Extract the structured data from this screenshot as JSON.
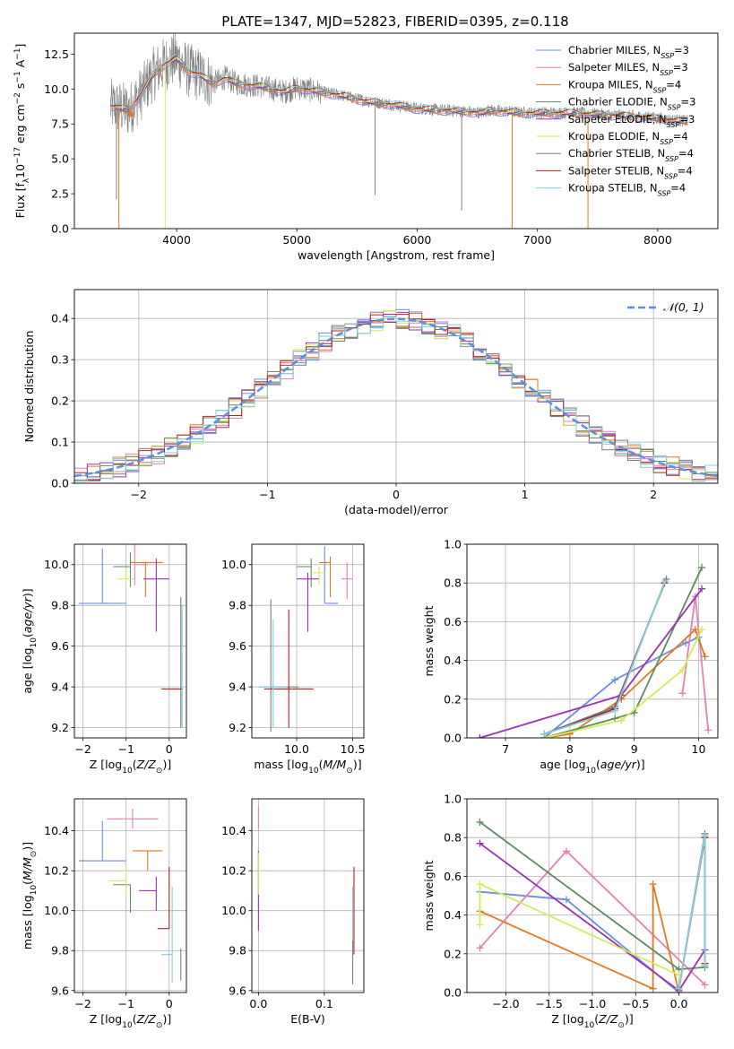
{
  "figure": {
    "title": "PLATE=1347, MJD=52823, FIBERID=0395, z=0.118"
  },
  "colors": {
    "chabrier_miles": "#6b8ee0",
    "salpeter_miles": "#e37fb4",
    "kroupa_miles": "#e07a20",
    "chabrier_elodie": "#5e8c5e",
    "salpeter_elodie": "#9a30b5",
    "kroupa_elodie": "#d4ec5a",
    "chabrier_stelib": "#7f7f7f",
    "salpeter_stelib": "#b22222",
    "kroupa_stelib": "#80d0e0"
  },
  "chart_data": [
    {
      "id": "spectrum",
      "type": "line",
      "xlabel": "wavelength [Angstrom, rest frame]",
      "ylabel": "Flux [f_λ 10^-17 erg cm^-2 s^-1 A^-1]",
      "xlim": [
        3150,
        8500
      ],
      "ylim": [
        0,
        14
      ],
      "xticks": [
        4000,
        5000,
        6000,
        7000,
        8000
      ],
      "yticks": [
        0.0,
        2.5,
        5.0,
        7.5,
        10.0,
        12.5
      ],
      "grid": false,
      "legend_position": "top-right",
      "legend": [
        {
          "label": "Chabrier MILES, N",
          "sub": "SSP",
          "suffix": "=3",
          "color_key": "chabrier_miles"
        },
        {
          "label": "Salpeter MILES, N",
          "sub": "SSP",
          "suffix": "=3",
          "color_key": "salpeter_miles"
        },
        {
          "label": "Kroupa MILES, N",
          "sub": "SSP",
          "suffix": "=4",
          "color_key": "kroupa_miles"
        },
        {
          "label": "Chabrier ELODIE, N",
          "sub": "SSP",
          "suffix": "=3",
          "color_key": "chabrier_elodie"
        },
        {
          "label": "Salpeter ELODIE, N",
          "sub": "SSP",
          "suffix": "=3",
          "color_key": "salpeter_elodie"
        },
        {
          "label": "Kroupa ELODIE, N",
          "sub": "SSP",
          "suffix": "=4",
          "color_key": "kroupa_elodie"
        },
        {
          "label": "Chabrier STELIB, N",
          "sub": "SSP",
          "suffix": "=4",
          "color_key": "chabrier_stelib"
        },
        {
          "label": "Salpeter STELIB, N",
          "sub": "SSP",
          "suffix": "=4",
          "color_key": "salpeter_stelib"
        },
        {
          "label": "Kroupa STELIB, N",
          "sub": "SSP",
          "suffix": "=4",
          "color_key": "kroupa_stelib"
        }
      ],
      "continuum": {
        "x": [
          3450,
          3600,
          3700,
          3800,
          3900,
          3950,
          4000,
          4100,
          4200,
          4300,
          4400,
          4500,
          4700,
          4900,
          5000,
          5200,
          5400,
          5600,
          5800,
          6000,
          6200,
          6400,
          6550,
          6600,
          6700,
          6900,
          7100,
          7300,
          7500,
          7700,
          7900,
          8100,
          8250
        ],
        "y": [
          8.8,
          8.5,
          9.6,
          11.0,
          11.8,
          12.0,
          12.2,
          11.3,
          11.0,
          10.4,
          10.8,
          10.4,
          10.2,
          9.8,
          10.1,
          9.8,
          9.5,
          9.1,
          8.9,
          8.6,
          8.5,
          8.4,
          8.3,
          8.5,
          8.4,
          8.3,
          8.3,
          8.3,
          8.2,
          8.1,
          8.0,
          7.8,
          7.7
        ]
      },
      "sharp_drops": [
        {
          "x": 3500,
          "y": 2.1,
          "color_key": "chabrier_stelib"
        },
        {
          "x": 3520,
          "y": 0.0,
          "color_key": "kroupa_miles"
        },
        {
          "x": 3905,
          "y": 0.0,
          "color_key": "kroupa_elodie"
        },
        {
          "x": 5650,
          "y": 2.4,
          "color_key": "chabrier_stelib"
        },
        {
          "x": 6370,
          "y": 1.3,
          "color_key": "chabrier_stelib"
        },
        {
          "x": 6790,
          "y": 0.0,
          "color_key": "kroupa_miles"
        },
        {
          "x": 7420,
          "y": 0.0,
          "color_key": "kroupa_miles"
        }
      ],
      "data_start_marker": {
        "x": 3620,
        "y": 8.2,
        "color_key": "kroupa_miles"
      }
    },
    {
      "id": "residual_histogram",
      "type": "bar",
      "xlabel": "(data-model)/error",
      "ylabel": "Normed distribution",
      "xlim": [
        -2.5,
        2.5
      ],
      "ylim": [
        0.0,
        0.47
      ],
      "xticks": [
        -2,
        -1,
        0,
        1,
        2
      ],
      "yticks": [
        0.0,
        0.1,
        0.2,
        0.3,
        0.4
      ],
      "bin_width": 0.1,
      "grid": true,
      "legend_position": "top-right",
      "reference_curve": {
        "label": "𝒩(0, 1)",
        "color": "#5b8fe0",
        "mean": 0,
        "sigma": 1,
        "dashed": true
      },
      "series_note": "nine step histograms, one per model (same colors as the spectrum legend)"
    },
    {
      "id": "age_vs_metallicity",
      "type": "scatter",
      "xlabel": "Z [log10(Z/Z⊙)]",
      "ylabel": "age [log10(age/yr)]",
      "xlim": [
        -2.2,
        0.4
      ],
      "ylim": [
        9.15,
        10.1
      ],
      "xticks": [
        -2,
        -1,
        0
      ],
      "yticks": [
        9.2,
        9.4,
        9.6,
        9.8,
        10.0
      ],
      "grid": true,
      "points": [
        {
          "x": -1.55,
          "xerr": [
            0.55,
            0.55
          ],
          "y": 9.81,
          "yerr": [
            0.0,
            0.27
          ],
          "color_key": "chabrier_miles"
        },
        {
          "x": -0.8,
          "xerr": [
            0.0,
            0.3
          ],
          "y": 10.0,
          "yerr": [
            0.1,
            0.1
          ],
          "color_key": "salpeter_miles"
        },
        {
          "x": -0.55,
          "xerr": [
            0.35,
            0.4
          ],
          "y": 10.01,
          "yerr": [
            0.17,
            0.0
          ],
          "color_key": "kroupa_miles"
        },
        {
          "x": -0.9,
          "xerr": [
            0.4,
            0.0
          ],
          "y": 9.99,
          "yerr": [
            0.1,
            0.07
          ],
          "color_key": "chabrier_elodie"
        },
        {
          "x": -0.3,
          "xerr": [
            0.3,
            0.3
          ],
          "y": 9.93,
          "yerr": [
            0.26,
            0.1
          ],
          "color_key": "salpeter_elodie"
        },
        {
          "x": -1.0,
          "xerr": [
            0.2,
            0.2
          ],
          "y": 9.93,
          "yerr": [
            0.02,
            0.05
          ],
          "color_key": "kroupa_elodie"
        },
        {
          "x": 0.27,
          "xerr": [
            0.0,
            0.0
          ],
          "y": 9.4,
          "yerr": [
            0.2,
            0.44
          ],
          "color_key": "chabrier_stelib"
        },
        {
          "x": 0.07,
          "xerr": [
            0.25,
            0.25
          ],
          "y": 9.39,
          "yerr": [
            0.0,
            0.0
          ],
          "color_key": "salpeter_stelib"
        },
        {
          "x": 0.3,
          "xerr": [
            0.0,
            0.0
          ],
          "y": 9.4,
          "yerr": [
            0.2,
            0.4
          ],
          "color_key": "kroupa_stelib"
        }
      ]
    },
    {
      "id": "age_vs_mass",
      "type": "scatter",
      "xlabel": "mass [log10(M/M⊙)]",
      "ylabel": "",
      "xlim": [
        9.6,
        10.6
      ],
      "ylim": [
        9.15,
        10.1
      ],
      "xticks": [
        9.5,
        10.0,
        10.5
      ],
      "yticks": [
        9.2,
        9.4,
        9.6,
        9.8,
        10.0
      ],
      "grid": true,
      "points": [
        {
          "x": 10.25,
          "xerr": [
            0.0,
            0.12
          ],
          "y": 9.81,
          "yerr": [
            0.0,
            0.28
          ],
          "color_key": "chabrier_miles"
        },
        {
          "x": 10.45,
          "xerr": [
            0.05,
            0.05
          ],
          "y": 9.93,
          "yerr": [
            0.1,
            0.08
          ],
          "color_key": "salpeter_miles"
        },
        {
          "x": 10.3,
          "xerr": [
            0.1,
            0.0
          ],
          "y": 10.01,
          "yerr": [
            0.17,
            0.03
          ],
          "color_key": "kroupa_miles"
        },
        {
          "x": 10.13,
          "xerr": [
            0.13,
            0.0
          ],
          "y": 9.99,
          "yerr": [
            0.1,
            0.04
          ],
          "color_key": "chabrier_elodie"
        },
        {
          "x": 10.1,
          "xerr": [
            0.1,
            0.1
          ],
          "y": 9.93,
          "yerr": [
            0.26,
            0.03
          ],
          "color_key": "salpeter_elodie"
        },
        {
          "x": 10.2,
          "xerr": [
            0.05,
            0.05
          ],
          "y": 9.96,
          "yerr": [
            0.06,
            0.03
          ],
          "color_key": "kroupa_elodie"
        },
        {
          "x": 9.77,
          "xerr": [
            0.1,
            0.25
          ],
          "y": 9.4,
          "yerr": [
            0.22,
            0.43
          ],
          "color_key": "chabrier_stelib"
        },
        {
          "x": 9.93,
          "xerr": [
            0.22,
            0.22
          ],
          "y": 9.39,
          "yerr": [
            0.19,
            0.39
          ],
          "color_key": "salpeter_stelib"
        },
        {
          "x": 9.79,
          "xerr": [
            0.12,
            0.12
          ],
          "y": 9.4,
          "yerr": [
            0.2,
            0.33
          ],
          "color_key": "kroupa_stelib"
        }
      ]
    },
    {
      "id": "mass_weight_vs_age",
      "type": "line",
      "xlabel": "age [log10(age/yr)]",
      "ylabel": "mass weight",
      "xlim": [
        6.4,
        10.3
      ],
      "ylim": [
        0.0,
        1.0
      ],
      "xticks": [
        7,
        8,
        9,
        10
      ],
      "yticks": [
        0.0,
        0.2,
        0.4,
        0.6,
        0.8,
        1.0
      ],
      "grid": true,
      "series": [
        {
          "color_key": "chabrier_miles",
          "x": [
            7.6,
            8.7,
            9.8,
            10.0
          ],
          "y": [
            0.0,
            0.3,
            0.49,
            0.52
          ]
        },
        {
          "color_key": "salpeter_miles",
          "x": [
            9.75,
            9.95,
            10.15
          ],
          "y": [
            0.23,
            0.73,
            0.04
          ]
        },
        {
          "color_key": "kroupa_miles",
          "x": [
            7.6,
            8.0,
            8.8,
            9.95,
            10.1
          ],
          "y": [
            0.0,
            0.02,
            0.2,
            0.56,
            0.42
          ]
        },
        {
          "color_key": "chabrier_elodie",
          "x": [
            7.6,
            8.7,
            9.0,
            10.05
          ],
          "y": [
            0.0,
            0.1,
            0.13,
            0.88
          ]
        },
        {
          "color_key": "salpeter_elodie",
          "x": [
            6.6,
            8.8,
            10.05
          ],
          "y": [
            0.0,
            0.22,
            0.77
          ]
        },
        {
          "color_key": "kroupa_elodie",
          "x": [
            7.6,
            8.8,
            9.75,
            10.05
          ],
          "y": [
            0.0,
            0.09,
            0.35,
            0.56
          ]
        },
        {
          "color_key": "chabrier_stelib",
          "x": [
            7.6,
            8.7,
            9.5
          ],
          "y": [
            0.02,
            0.16,
            0.82
          ]
        },
        {
          "color_key": "salpeter_stelib",
          "x": [
            7.6,
            8.7,
            9.47
          ],
          "y": [
            0.02,
            0.15,
            0.8
          ]
        },
        {
          "color_key": "kroupa_stelib",
          "x": [
            7.6,
            8.7,
            9.48
          ],
          "y": [
            0.02,
            0.14,
            0.81
          ]
        }
      ]
    },
    {
      "id": "mass_vs_metallicity",
      "type": "scatter",
      "xlabel": "Z [log10(Z/Z⊙)]",
      "ylabel": "mass [log10(M/M⊙)]",
      "xlim": [
        -2.2,
        0.4
      ],
      "ylim": [
        9.59,
        10.56
      ],
      "xticks": [
        -2,
        -1,
        0
      ],
      "yticks": [
        9.6,
        9.8,
        10.0,
        10.2,
        10.4
      ],
      "grid": true,
      "points": [
        {
          "x": -1.55,
          "xerr": [
            0.55,
            0.55
          ],
          "y": 10.25,
          "yerr": [
            0.0,
            0.2
          ],
          "color_key": "chabrier_miles"
        },
        {
          "x": -0.85,
          "xerr": [
            0.6,
            0.6
          ],
          "y": 10.46,
          "yerr": [
            0.05,
            0.05
          ],
          "color_key": "salpeter_miles"
        },
        {
          "x": -0.5,
          "xerr": [
            0.35,
            0.35
          ],
          "y": 10.3,
          "yerr": [
            0.1,
            0.0
          ],
          "color_key": "kroupa_miles"
        },
        {
          "x": -0.9,
          "xerr": [
            0.4,
            0.0
          ],
          "y": 10.13,
          "yerr": [
            0.14,
            0.0
          ],
          "color_key": "chabrier_elodie"
        },
        {
          "x": -0.3,
          "xerr": [
            0.4,
            0.0
          ],
          "y": 10.1,
          "yerr": [
            0.1,
            0.07
          ],
          "color_key": "salpeter_elodie"
        },
        {
          "x": -1.0,
          "xerr": [
            0.4,
            0.0
          ],
          "y": 10.15,
          "yerr": [
            0.07,
            0.07
          ],
          "color_key": "kroupa_elodie"
        },
        {
          "x": 0.27,
          "xerr": [
            0.0,
            0.0
          ],
          "y": 9.75,
          "yerr": [
            0.1,
            0.06
          ],
          "color_key": "chabrier_stelib"
        },
        {
          "x": 0.0,
          "xerr": [
            0.27,
            0.0
          ],
          "y": 9.91,
          "yerr": [
            0.0,
            0.31
          ],
          "color_key": "salpeter_stelib"
        },
        {
          "x": 0.07,
          "xerr": [
            0.25,
            0.0
          ],
          "y": 9.78,
          "yerr": [
            0.14,
            0.34
          ],
          "color_key": "kroupa_stelib"
        }
      ]
    },
    {
      "id": "mass_vs_extinction",
      "type": "scatter",
      "xlabel": "E(B-V)",
      "ylabel": "",
      "xlim": [
        -0.01,
        0.16
      ],
      "ylim": [
        9.59,
        10.56
      ],
      "xticks": [
        0.0,
        0.1
      ],
      "yticks": [
        9.6,
        9.8,
        10.0,
        10.2,
        10.4
      ],
      "grid": true,
      "points": [
        {
          "x": 0.0,
          "xerr": [
            0.0,
            0.0
          ],
          "y": 10.46,
          "yerr": [
            0.05,
            0.06
          ],
          "color_key": "salpeter_miles"
        },
        {
          "x": 0.0,
          "xerr": [
            0.0,
            0.0
          ],
          "y": 10.0,
          "yerr": [
            0.1,
            0.3
          ],
          "color_key": "salpeter_elodie"
        },
        {
          "x": 0.0,
          "xerr": [
            0.0,
            0.0
          ],
          "y": 10.15,
          "yerr": [
            0.07,
            0.14
          ],
          "color_key": "kroupa_elodie"
        },
        {
          "x": 0.145,
          "xerr": [
            0.0,
            0.0
          ],
          "y": 9.91,
          "yerr": [
            0.13,
            0.31
          ],
          "color_key": "salpeter_stelib"
        },
        {
          "x": 0.143,
          "xerr": [
            0.0,
            0.0
          ],
          "y": 9.78,
          "yerr": [
            0.14,
            0.34
          ],
          "color_key": "kroupa_stelib"
        },
        {
          "x": 0.143,
          "xerr": [
            0.0,
            0.0
          ],
          "y": 9.75,
          "yerr": [
            0.12,
            0.1
          ],
          "color_key": "chabrier_stelib"
        }
      ]
    },
    {
      "id": "mass_weight_vs_metallicity",
      "type": "line",
      "xlabel": "Z [log10(Z/Z⊙)]",
      "ylabel": "mass weight",
      "xlim": [
        -2.45,
        0.45
      ],
      "ylim": [
        0.0,
        1.0
      ],
      "xticks": [
        -2.0,
        -1.5,
        -1.0,
        -0.5,
        0.0
      ],
      "yticks": [
        0.0,
        0.2,
        0.4,
        0.6,
        0.8,
        1.0
      ],
      "grid": true,
      "series": [
        {
          "color_key": "chabrier_miles",
          "x": [
            -2.3,
            -1.3,
            0.0
          ],
          "y": [
            0.52,
            0.48,
            0.0
          ]
        },
        {
          "color_key": "salpeter_miles",
          "x": [
            -2.3,
            -1.3,
            0.3
          ],
          "y": [
            0.23,
            0.73,
            0.04
          ]
        },
        {
          "color_key": "kroupa_miles",
          "x": [
            -2.3,
            -0.3,
            -0.3,
            0.0
          ],
          "y": [
            0.42,
            0.02,
            0.56,
            0.0
          ]
        },
        {
          "color_key": "chabrier_elodie",
          "x": [
            -2.3,
            0.0,
            0.3
          ],
          "y": [
            0.88,
            0.12,
            0.13
          ]
        },
        {
          "color_key": "salpeter_elodie",
          "x": [
            -2.3,
            0.0,
            0.3
          ],
          "y": [
            0.77,
            0.01,
            0.22
          ]
        },
        {
          "color_key": "kroupa_elodie",
          "x": [
            -2.3,
            -2.3,
            0.0
          ],
          "y": [
            0.35,
            0.56,
            0.09
          ]
        },
        {
          "color_key": "chabrier_stelib",
          "x": [
            0.0,
            0.3,
            0.3
          ],
          "y": [
            0.02,
            0.82,
            0.14
          ]
        },
        {
          "color_key": "salpeter_stelib",
          "x": [
            0.0,
            0.3,
            0.3
          ],
          "y": [
            0.02,
            0.8,
            0.15
          ]
        },
        {
          "color_key": "kroupa_stelib",
          "x": [
            0.0,
            0.3,
            0.3
          ],
          "y": [
            0.02,
            0.81,
            0.14
          ]
        }
      ]
    }
  ]
}
